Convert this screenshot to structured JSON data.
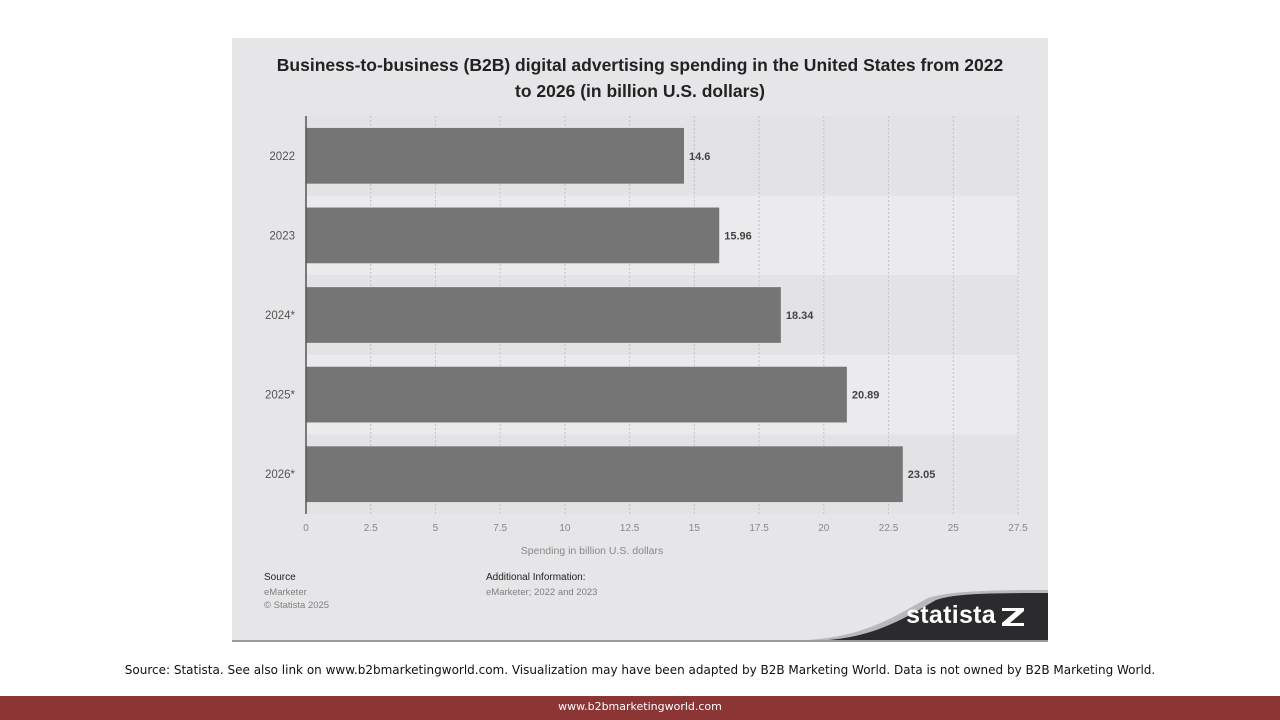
{
  "chart_data": {
    "type": "bar",
    "orientation": "horizontal",
    "title": "Business-to-business (B2B) digital advertising spending in the United States from 2022 to 2026 (in billion U.S. dollars)",
    "categories": [
      "2022",
      "2023",
      "2024*",
      "2025*",
      "2026*"
    ],
    "values": [
      14.6,
      15.96,
      18.34,
      20.89,
      23.05
    ],
    "value_labels": [
      "14.6",
      "15.96",
      "18.34",
      "20.89",
      "23.05"
    ],
    "xlabel": "Spending in billion U.S. dollars",
    "xlim": [
      0,
      27.5
    ],
    "xticks": [
      0,
      2.5,
      5,
      7.5,
      10,
      12.5,
      15,
      17.5,
      20,
      22.5,
      25,
      27.5
    ],
    "xtick_labels": [
      "0",
      "2.5",
      "5",
      "7.5",
      "10",
      "12.5",
      "15",
      "17.5",
      "20",
      "22.5",
      "25",
      "27.5"
    ],
    "grid": "vertical",
    "bar_color": "#757575"
  },
  "source": {
    "heading": "Source",
    "lines": [
      "eMarketer",
      "© Statista 2025"
    ]
  },
  "additional_info": {
    "heading": "Additional Information:",
    "text": "eMarketer; 2022 and 2023"
  },
  "brand": {
    "name": "statista",
    "logo_icon": "statista-logo-icon"
  },
  "page_source_text": "Source: Statista. See also link on www.b2bmarketingworld.com. Visualization may have been adapted by B2B Marketing World. Data is not owned by B2B Marketing World.",
  "footer_url": "www.b2bmarketingworld.com",
  "colors": {
    "card_bg": "#e6e6e8",
    "bar": "#757575",
    "footer": "#8b3535"
  }
}
